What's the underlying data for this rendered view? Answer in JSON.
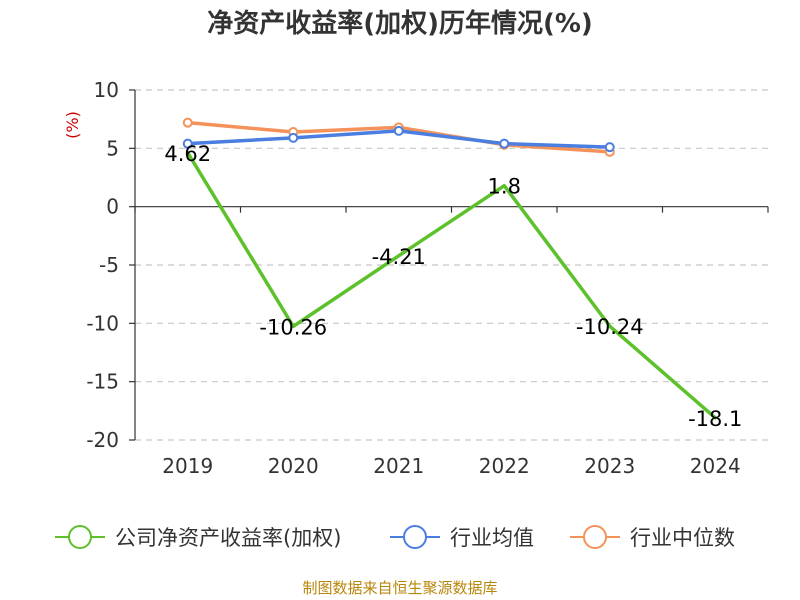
{
  "chart_data": {
    "type": "line",
    "title": "净资产收益率(加权)历年情况(%)",
    "ylabel": "(%)",
    "xlabel": "",
    "categories": [
      "2019",
      "2020",
      "2021",
      "2022",
      "2023",
      "2024"
    ],
    "ylim": [
      -20,
      10
    ],
    "yticks": [
      10,
      5,
      0,
      -5,
      -10,
      -15,
      -20
    ],
    "grid": "horizontal-dashed",
    "legend_position": "bottom",
    "series": [
      {
        "name": "公司净资产收益率(加权)",
        "color": "#5cc12a",
        "values": [
          4.62,
          -10.26,
          -4.21,
          1.8,
          -10.24,
          -18.1
        ],
        "labels": [
          "4.62",
          "-10.26",
          "-4.21",
          "1.8",
          "-10.24",
          "-18.1"
        ]
      },
      {
        "name": "行业均值",
        "color": "#4a7ee0",
        "values": [
          5.4,
          5.9,
          6.5,
          5.4,
          5.1,
          null
        ]
      },
      {
        "name": "行业中位数",
        "color": "#f4925a",
        "values": [
          7.2,
          6.4,
          6.8,
          5.3,
          4.7,
          null
        ]
      }
    ],
    "source": "制图数据来自恒生聚源数据库"
  }
}
